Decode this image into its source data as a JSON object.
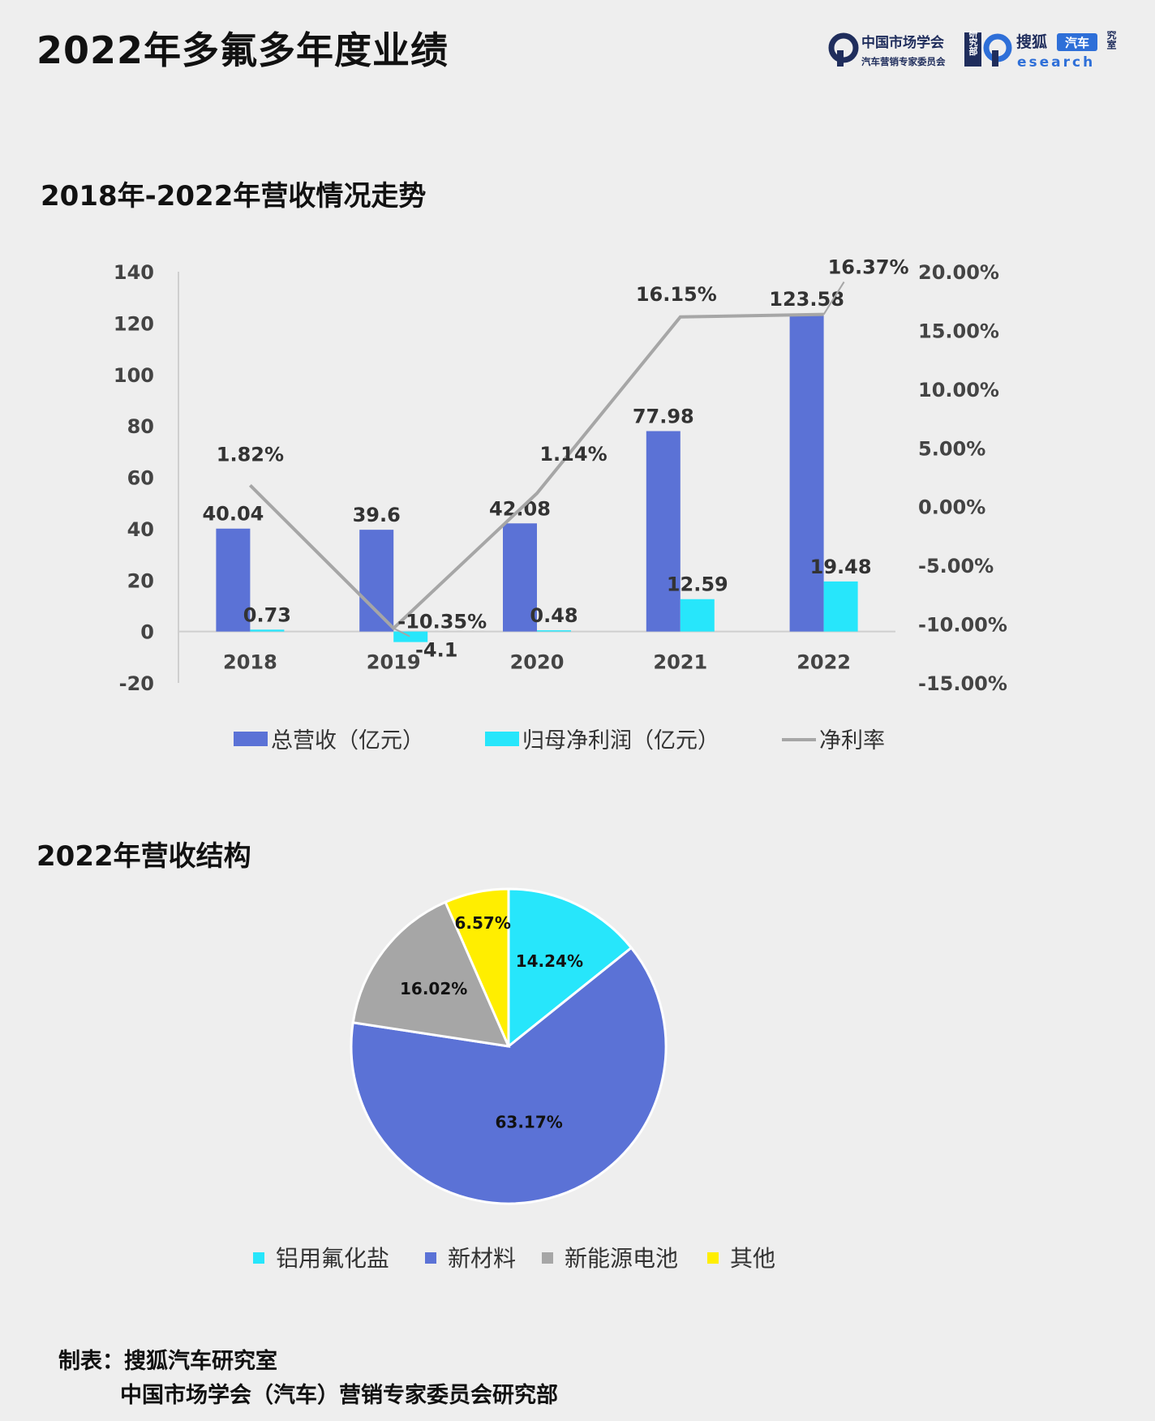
{
  "title": "2022年多氟多年度业绩",
  "logos": {
    "logo1_line1": "中国市场学会",
    "logo1_line2": "汽车营销专家委员会",
    "logo1_badge": "研究部",
    "logo2_name": "搜狐",
    "logo2_tag": "汽车",
    "logo2_sub": "esearch",
    "logo2_side": "研究室",
    "colors": {
      "navy": "#1f2d5c",
      "blue": "#2e6fd8"
    }
  },
  "bar_section_title": "2018年-2022年营收情况走势",
  "pie_section_title": "2022年营收结构",
  "chart_data": [
    {
      "type": "bar",
      "categories": [
        "2018",
        "2019",
        "2020",
        "2021",
        "2022"
      ],
      "series": [
        {
          "name": "总营收（亿元）",
          "kind": "bar",
          "axis": "left",
          "color": "#5b72d6",
          "values": [
            40.04,
            39.6,
            42.08,
            77.98,
            123.58
          ],
          "labels": [
            "40.04",
            "39.6",
            "42.08",
            "77.98",
            "123.58"
          ]
        },
        {
          "name": "归母净利润（亿元）",
          "kind": "bar",
          "axis": "left",
          "color": "#27e6fb",
          "values": [
            0.73,
            -4.1,
            0.48,
            12.59,
            19.48
          ],
          "labels": [
            "0.73",
            "-4.1",
            "0.48",
            "12.59",
            "19.48"
          ]
        },
        {
          "name": "净利率",
          "kind": "line",
          "axis": "right",
          "color": "#a6a6a6",
          "values": [
            1.82,
            -10.35,
            1.14,
            16.15,
            16.37
          ],
          "labels": [
            "1.82%",
            "-10.35%",
            "1.14%",
            "16.15%",
            "16.37%"
          ]
        }
      ],
      "y_left": {
        "min": -20,
        "max": 140,
        "ticks": [
          140,
          120,
          100,
          80,
          60,
          40,
          20,
          0,
          -20
        ],
        "tick_labels": [
          "140",
          "120",
          "100",
          "80",
          "60",
          "40",
          "20",
          "0",
          "-20"
        ]
      },
      "y_right": {
        "min": -15,
        "max": 20,
        "ticks": [
          20,
          15,
          10,
          5,
          0,
          -5,
          -10,
          -15
        ],
        "tick_labels": [
          "20.00%",
          "15.00%",
          "10.00%",
          "5.00%",
          "0.00%",
          "-5.00%",
          "-10.00%",
          "-15.00%"
        ]
      },
      "legend_position": "bottom",
      "grid": false
    },
    {
      "type": "pie",
      "slices": [
        {
          "name": "铝用氟化盐",
          "value": 14.24,
          "label": "14.24%",
          "color": "#27e6fb"
        },
        {
          "name": "新材料",
          "value": 63.17,
          "label": "63.17%",
          "color": "#5b72d6"
        },
        {
          "name": "新能源电池",
          "value": 16.02,
          "label": "16.02%",
          "color": "#a6a6a6"
        },
        {
          "name": "其他",
          "value": 6.57,
          "label": "6.57%",
          "color": "#ffee00"
        }
      ],
      "legend_position": "bottom"
    }
  ],
  "footer": {
    "line1": "制表：搜狐汽车研究室",
    "line2": "中国市场学会（汽车）营销专家委员会研究部"
  }
}
